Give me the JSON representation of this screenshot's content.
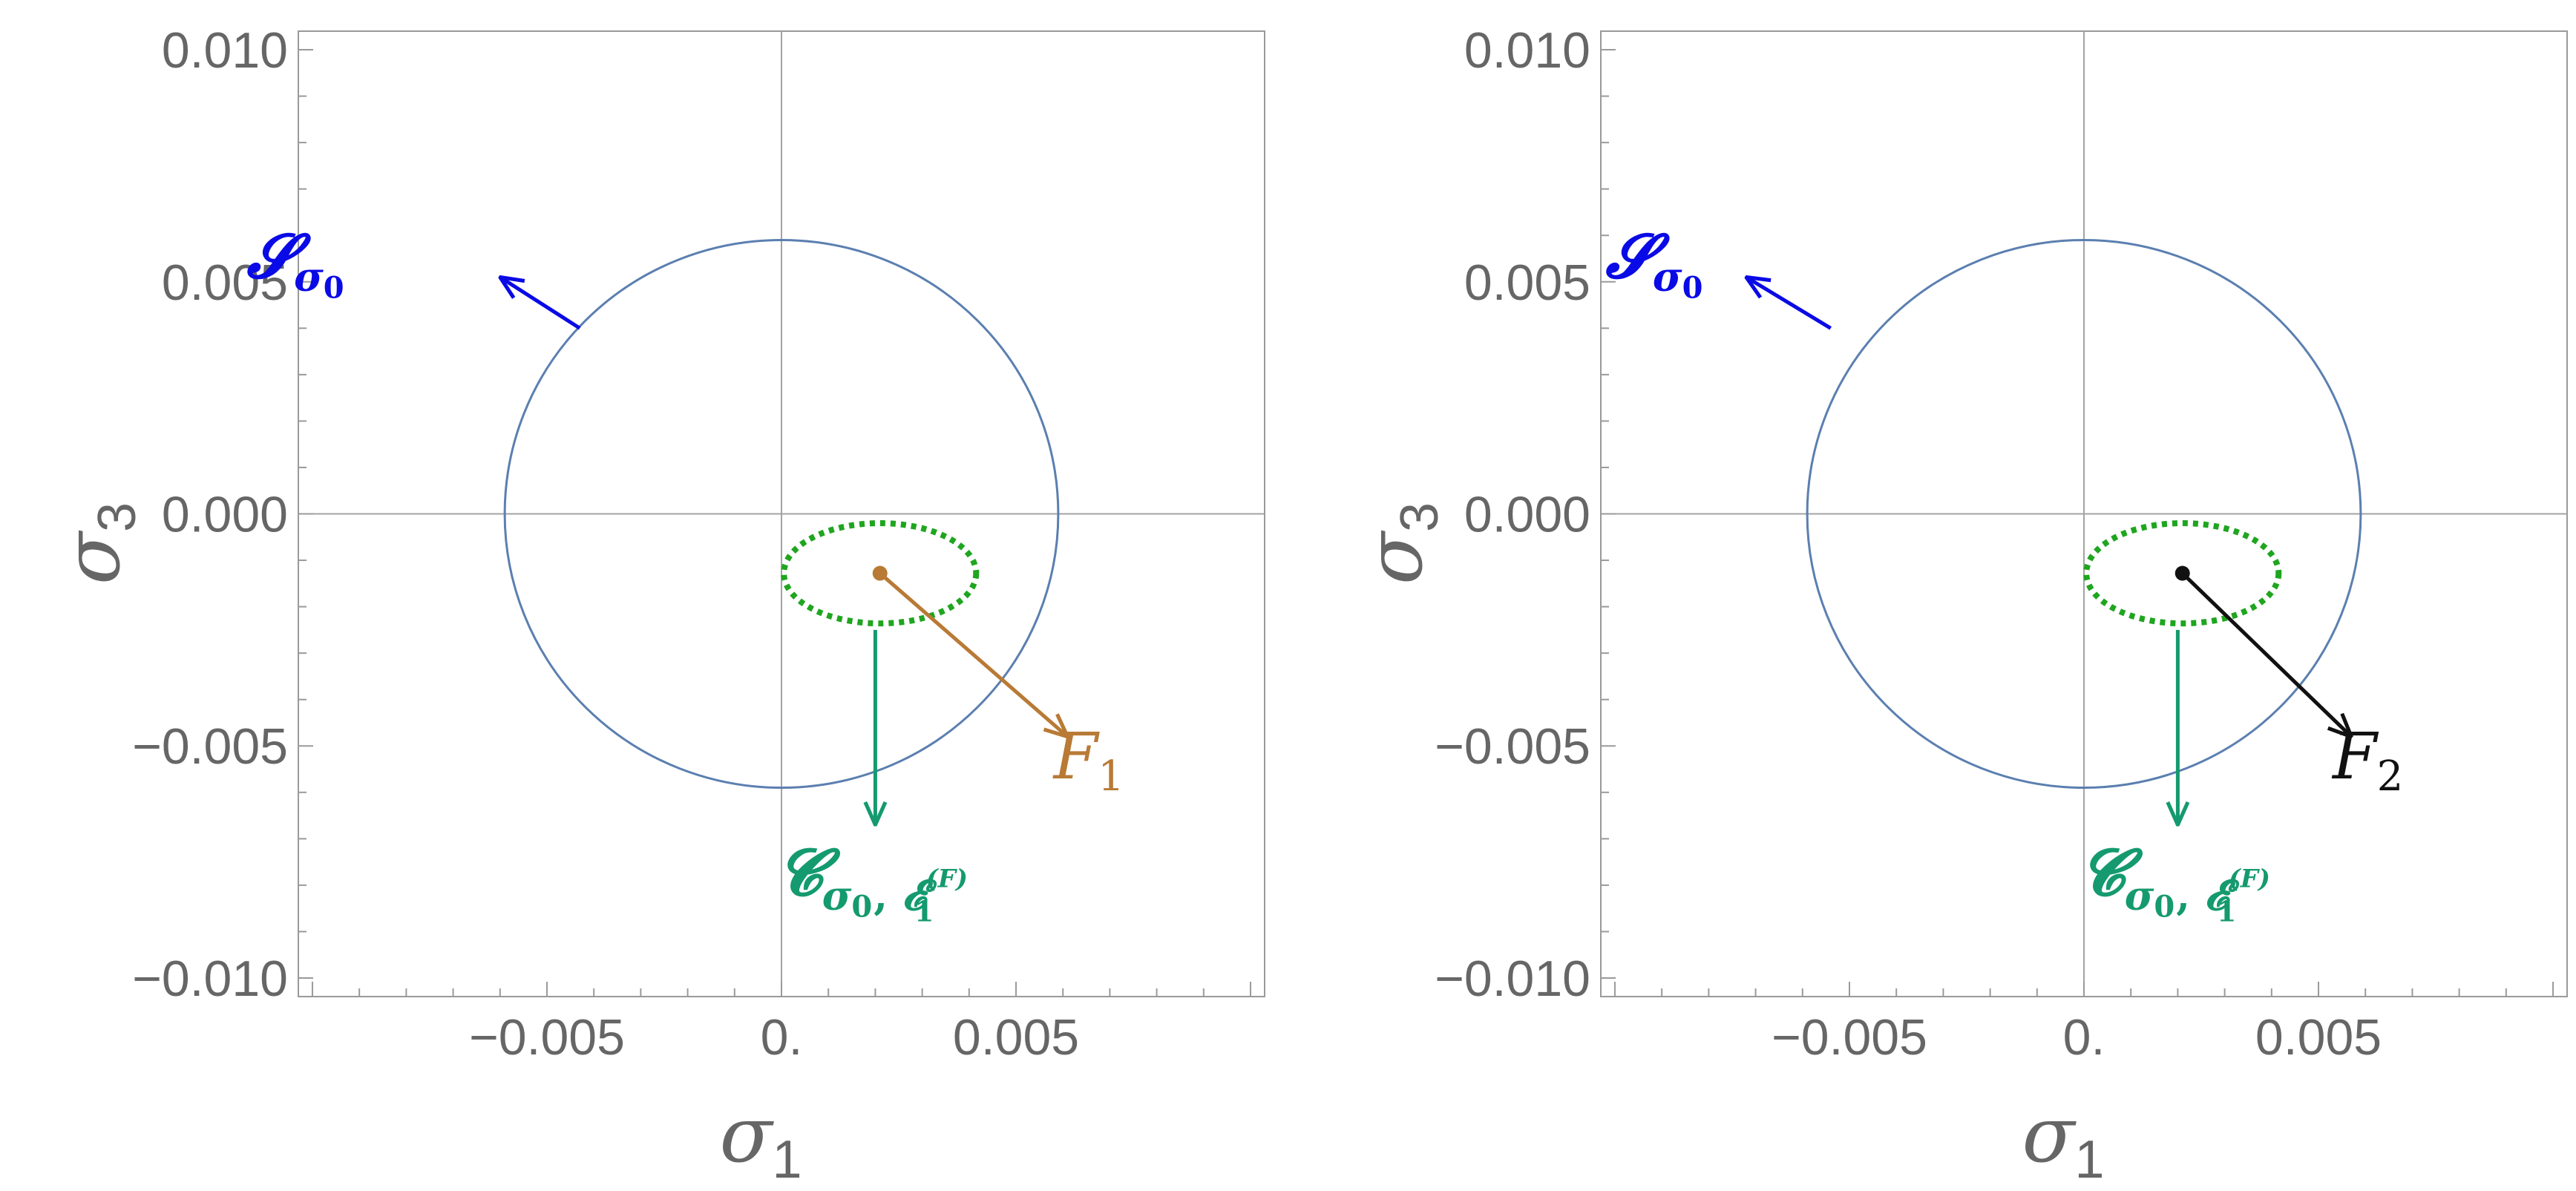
{
  "chart_data": [
    {
      "type": "scatter",
      "title": "",
      "xlabel": "σ1",
      "ylabel": "σ3",
      "axis_label_sym": "σ",
      "xlabel_sub": "1",
      "ylabel_sub": "3",
      "xlim": [
        -0.0103,
        0.0103
      ],
      "ylim": [
        -0.0104,
        0.0104
      ],
      "xticks": [
        {
          "v": -0.005,
          "label": "−0.005"
        },
        {
          "v": 0,
          "label": "0."
        },
        {
          "v": 0.005,
          "label": "0.005"
        }
      ],
      "yticks": [
        {
          "v": 0.01,
          "label": "0.010"
        },
        {
          "v": 0.005,
          "label": "0.005"
        },
        {
          "v": 0,
          "label": "0.000"
        },
        {
          "v": -0.005,
          "label": "−0.005"
        },
        {
          "v": -0.01,
          "label": "−0.010"
        }
      ],
      "grid": false,
      "origin_lines": true,
      "circle": {
        "center": [
          0,
          0
        ],
        "radius": 0.0059,
        "color": "#5b7fb0"
      },
      "ellipse": {
        "center": [
          0.0021,
          -0.00128
        ],
        "rx": 0.00205,
        "ry": 0.00108,
        "color": "#1fa51f",
        "style": "dotted"
      },
      "point": {
        "x": 0.0021,
        "y": -0.00128
      },
      "arrows": [
        {
          "name": "S-arrow",
          "from": [
            -0.0043,
            0.004
          ],
          "to": [
            -0.006,
            0.0051
          ],
          "color": "#0a0ae6"
        },
        {
          "name": "C-arrow",
          "from": [
            0.002,
            -0.0025
          ],
          "to": [
            0.002,
            -0.0067
          ],
          "color": "#149a6e"
        },
        {
          "name": "F-arrow",
          "from": [
            0.0021,
            -0.00128
          ],
          "to": [
            0.0061,
            -0.0048
          ],
          "color": "#b87a35"
        }
      ],
      "labels": {
        "S": {
          "sym": "𝓢",
          "sub": "σ",
          "subsub": "0",
          "color": "#0a0ae6"
        },
        "C": {
          "sym": "𝓒",
          "sub": "σ",
          "subsub": "0",
          "sep": ",",
          "eps": "𝓔",
          "eps_sub": "1",
          "eps_sup": "(F)",
          "color": "#149a6e"
        },
        "F": {
          "sym": "F",
          "sub": "1",
          "color": "#b87a35"
        }
      }
    },
    {
      "type": "scatter",
      "title": "",
      "xlabel": "σ1",
      "ylabel": "σ3",
      "axis_label_sym": "σ",
      "xlabel_sub": "1",
      "ylabel_sub": "3",
      "xlim": [
        -0.0103,
        0.0103
      ],
      "ylim": [
        -0.0104,
        0.0104
      ],
      "xticks": [
        {
          "v": -0.005,
          "label": "−0.005"
        },
        {
          "v": 0,
          "label": "0."
        },
        {
          "v": 0.005,
          "label": "0.005"
        }
      ],
      "yticks": [
        {
          "v": 0.01,
          "label": "0.010"
        },
        {
          "v": 0.005,
          "label": "0.005"
        },
        {
          "v": 0,
          "label": "0.000"
        },
        {
          "v": -0.005,
          "label": "−0.005"
        },
        {
          "v": -0.01,
          "label": "−0.010"
        }
      ],
      "grid": false,
      "origin_lines": true,
      "circle": {
        "center": [
          0,
          0
        ],
        "radius": 0.0059,
        "color": "#5b7fb0"
      },
      "ellipse": {
        "center": [
          0.0021,
          -0.00128
        ],
        "rx": 0.00205,
        "ry": 0.00108,
        "color": "#1fa51f",
        "style": "dotted"
      },
      "point": {
        "x": 0.0021,
        "y": -0.00128
      },
      "arrows": [
        {
          "name": "S-arrow",
          "from": [
            -0.0054,
            0.004
          ],
          "to": [
            -0.0072,
            0.0051
          ],
          "color": "#0a0ae6"
        },
        {
          "name": "C-arrow",
          "from": [
            0.002,
            -0.0025
          ],
          "to": [
            0.002,
            -0.0067
          ],
          "color": "#149a6e"
        },
        {
          "name": "F-arrow",
          "from": [
            0.0021,
            -0.00128
          ],
          "to": [
            0.0057,
            -0.0048
          ],
          "color": "#111111"
        }
      ],
      "labels": {
        "S": {
          "sym": "𝓢",
          "sub": "σ",
          "subsub": "0",
          "color": "#0a0ae6"
        },
        "C": {
          "sym": "𝓒",
          "sub": "σ",
          "subsub": "0",
          "sep": ",",
          "eps": "𝓔",
          "eps_sub": "1",
          "eps_sup": "(F)",
          "color": "#149a6e"
        },
        "F": {
          "sym": "F",
          "sub": "2",
          "color": "#111111"
        }
      }
    }
  ]
}
